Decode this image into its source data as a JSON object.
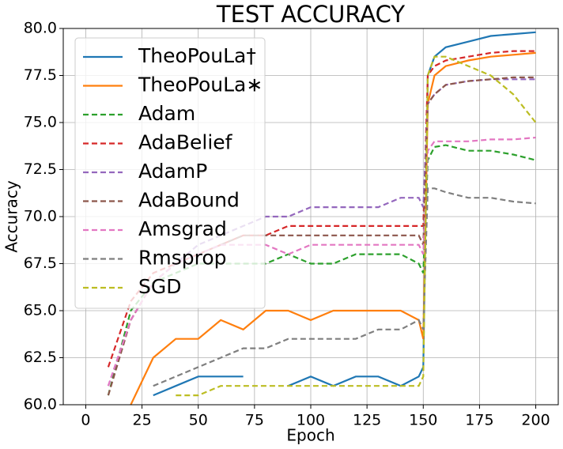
{
  "chart_data": {
    "type": "line",
    "title": "TEST ACCURACY",
    "xlabel": "Epoch",
    "ylabel": "Accuracy",
    "x": [
      10,
      20,
      30,
      40,
      50,
      60,
      70,
      80,
      90,
      100,
      110,
      120,
      130,
      140,
      148,
      150,
      152,
      155,
      160,
      170,
      180,
      190,
      200
    ],
    "series": [
      {
        "name": "TheoPouLa†",
        "color": "#1f77b4",
        "linestyle": "solid",
        "values": [
          null,
          null,
          60.5,
          61,
          61.5,
          61.5,
          61.5,
          null,
          61,
          61.5,
          61,
          61.5,
          61.5,
          61,
          61.5,
          62,
          77.5,
          78.5,
          79,
          79.3,
          79.6,
          79.7,
          79.8
        ]
      },
      {
        "name": "TheoPouLa∗",
        "color": "#ff7f0e",
        "linestyle": "solid",
        "values": [
          null,
          60,
          62.5,
          63.5,
          63.5,
          64.5,
          64,
          65,
          65,
          64.5,
          65,
          65,
          65,
          65,
          64.5,
          63.5,
          76,
          77.5,
          78,
          78.3,
          78.5,
          78.6,
          78.7
        ]
      },
      {
        "name": "Adam",
        "color": "#2ca02c",
        "linestyle": "dashed",
        "values": [
          60.5,
          65,
          66.5,
          67,
          67.5,
          67.5,
          67.5,
          67.5,
          68,
          67.5,
          67.5,
          68,
          68,
          68,
          67.5,
          67,
          73,
          73.7,
          73.8,
          73.5,
          73.5,
          73.3,
          73
        ]
      },
      {
        "name": "AdaBelief",
        "color": "#d62728",
        "linestyle": "dashed",
        "values": [
          62,
          65.5,
          67,
          67.5,
          68,
          68.5,
          69,
          69,
          69.5,
          69.5,
          69.5,
          69.5,
          69.5,
          69.5,
          69.5,
          69.5,
          77.5,
          78,
          78.3,
          78.5,
          78.7,
          78.8,
          78.8
        ]
      },
      {
        "name": "AdamP",
        "color": "#9467bd",
        "linestyle": "dashed",
        "values": [
          61,
          64.5,
          66.5,
          67.5,
          68.5,
          69,
          69.5,
          70,
          70,
          70.5,
          70.5,
          70.5,
          70.5,
          71,
          71,
          70.5,
          76,
          76.5,
          77,
          77.2,
          77.3,
          77.3,
          77.3
        ]
      },
      {
        "name": "AdaBound",
        "color": "#8c564b",
        "linestyle": "dashed",
        "values": [
          60.5,
          64.5,
          66.5,
          67.5,
          68,
          68.5,
          69,
          69,
          69,
          69,
          69,
          69,
          69,
          69,
          69,
          68.5,
          76,
          76.5,
          77,
          77.2,
          77.3,
          77.4,
          77.4
        ]
      },
      {
        "name": "Amsgrad",
        "color": "#e377c2",
        "linestyle": "dashed",
        "values": [
          61,
          64.5,
          66.5,
          67.5,
          68,
          68.5,
          68.5,
          68.5,
          68,
          68.5,
          68.5,
          68.5,
          68.5,
          68.5,
          68.5,
          68,
          73.5,
          74,
          74,
          74,
          74.1,
          74.1,
          74.2
        ]
      },
      {
        "name": "Rmsprop",
        "color": "#7f7f7f",
        "linestyle": "dashed",
        "values": [
          null,
          null,
          61,
          61.5,
          62,
          62.5,
          63,
          63,
          63.5,
          63.5,
          63.5,
          63.5,
          64,
          64,
          64.5,
          64,
          71.5,
          71.5,
          71.3,
          71,
          71,
          70.8,
          70.7
        ]
      },
      {
        "name": "SGD",
        "color": "#bcbd22",
        "linestyle": "dashed",
        "values": [
          null,
          null,
          null,
          60.5,
          60.5,
          61,
          61,
          61,
          61,
          61,
          61,
          61,
          61,
          61,
          61,
          61.5,
          77.5,
          78.5,
          78.5,
          78,
          77.5,
          76.5,
          75
        ]
      }
    ],
    "xlim": [
      -10,
      210
    ],
    "xticks": [
      0,
      25,
      50,
      75,
      100,
      125,
      150,
      175,
      200
    ],
    "ylim": [
      60,
      80
    ],
    "yticks": [
      {
        "value": 60,
        "label": "60.0"
      },
      {
        "value": 62.5,
        "label": "62.5"
      },
      {
        "value": 65,
        "label": "65.0"
      },
      {
        "value": 67.5,
        "label": "67.5"
      },
      {
        "value": 70,
        "label": "70.0"
      },
      {
        "value": 72.5,
        "label": "72.5"
      },
      {
        "value": 75,
        "label": "75.0"
      },
      {
        "value": 77.5,
        "label": "77.5"
      },
      {
        "value": 80,
        "label": "80.0"
      }
    ],
    "grid": true,
    "legend_position": "upper-left"
  }
}
